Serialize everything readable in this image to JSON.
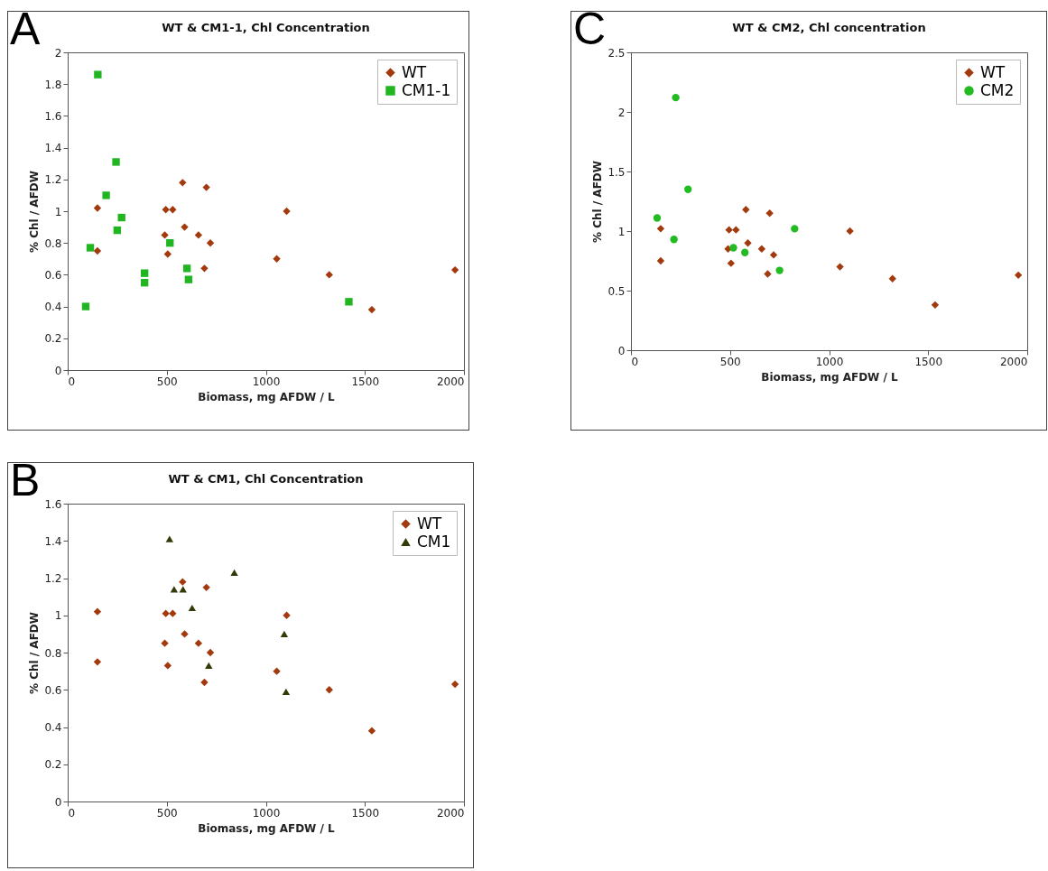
{
  "chart_data": [
    {
      "type": "scatter",
      "title": "WT & CM1-1, Chl Concentration",
      "xlabel": "Biomass, mg AFDW / L",
      "ylabel": "% Chl / AFDW",
      "annotations": [
        "A"
      ],
      "legend": "top right",
      "grid": false,
      "xlim": [
        0,
        2000
      ],
      "xticks": [
        0,
        500,
        1000,
        1500,
        2000
      ],
      "ylim": [
        0,
        2
      ],
      "yticks": [
        0,
        0.2,
        0.4,
        0.6,
        0.8,
        1,
        1.2,
        1.4,
        1.6,
        1.8,
        2
      ],
      "series": [
        {
          "name": "WT",
          "color": "#a33a0e",
          "marker": "diamond",
          "x": [
            150,
            150,
            490,
            495,
            530,
            505,
            580,
            590,
            660,
            690,
            700,
            720,
            1055,
            1105,
            1320,
            1535,
            1955
          ],
          "values": [
            0.75,
            1.02,
            0.85,
            1.01,
            1.01,
            0.73,
            1.18,
            0.9,
            0.85,
            0.64,
            1.15,
            0.8,
            0.7,
            1.0,
            0.6,
            0.38,
            0.63
          ]
        },
        {
          "name": "CM1-1",
          "color": "#22b522",
          "marker": "square",
          "x": [
            152,
            244,
            194,
            272,
            250,
            114,
            516,
            388,
            388,
            602,
            610,
            91,
            1419
          ],
          "values": [
            1.86,
            1.31,
            1.1,
            0.96,
            0.88,
            0.77,
            0.8,
            0.61,
            0.55,
            0.64,
            0.57,
            0.4,
            0.43
          ]
        }
      ]
    },
    {
      "type": "scatter",
      "title": "WT & CM2, Chl concentration",
      "xlabel": "Biomass, mg AFDW / L",
      "ylabel": "% Chl / AFDW",
      "annotations": [
        "C"
      ],
      "legend": "top right",
      "grid": false,
      "xlim": [
        0,
        2000
      ],
      "xticks": [
        0,
        500,
        1000,
        1500,
        2000
      ],
      "ylim": [
        0,
        2.5
      ],
      "yticks": [
        0,
        0.5,
        1,
        1.5,
        2,
        2.5
      ],
      "series": [
        {
          "name": "WT",
          "color": "#a33a0e",
          "marker": "diamond",
          "x": [
            150,
            150,
            490,
            495,
            530,
            505,
            580,
            590,
            660,
            690,
            700,
            720,
            1055,
            1105,
            1320,
            1535,
            1955
          ],
          "values": [
            0.75,
            1.02,
            0.85,
            1.01,
            1.01,
            0.73,
            1.18,
            0.9,
            0.85,
            0.64,
            1.15,
            0.8,
            0.7,
            1.0,
            0.6,
            0.38,
            0.63
          ]
        },
        {
          "name": "CM2",
          "color": "#22bb22",
          "marker": "circle",
          "x": [
            226,
            288,
            132,
            217,
            826,
            517,
            575,
            750
          ],
          "values": [
            2.12,
            1.35,
            1.11,
            0.93,
            1.02,
            0.86,
            0.82,
            0.67
          ]
        }
      ]
    },
    {
      "type": "scatter",
      "title": "WT & CM1, Chl Concentration",
      "xlabel": "Biomass, mg AFDW / L",
      "ylabel": "% Chl / AFDW",
      "annotations": [
        "B"
      ],
      "legend": "top right",
      "grid": false,
      "xlim": [
        0,
        2000
      ],
      "xticks": [
        0,
        500,
        1000,
        1500,
        2000
      ],
      "ylim": [
        0,
        1.6
      ],
      "yticks": [
        0,
        0.2,
        0.4,
        0.6,
        0.8,
        1,
        1.2,
        1.4,
        1.6
      ],
      "series": [
        {
          "name": "WT",
          "color": "#a33a0e",
          "marker": "diamond",
          "x": [
            150,
            150,
            490,
            495,
            530,
            505,
            580,
            590,
            660,
            690,
            700,
            720,
            1055,
            1105,
            1320,
            1535,
            1955
          ],
          "values": [
            0.75,
            1.02,
            0.85,
            1.01,
            1.01,
            0.73,
            1.18,
            0.9,
            0.85,
            0.64,
            1.15,
            0.8,
            0.7,
            1.0,
            0.6,
            0.38,
            0.63
          ]
        },
        {
          "name": "CM1",
          "color": "#333a08",
          "marker": "triangle",
          "x": [
            514,
            841,
            537,
            582,
            628,
            1093,
            712,
            1102
          ],
          "values": [
            1.41,
            1.23,
            1.14,
            1.14,
            1.04,
            0.9,
            0.73,
            0.59
          ]
        }
      ]
    }
  ]
}
